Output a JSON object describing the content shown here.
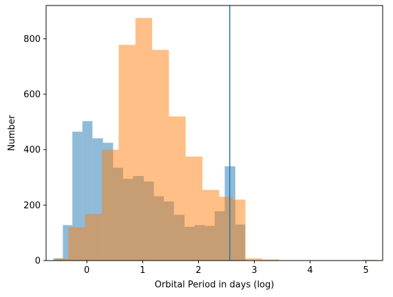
{
  "chart_data": {
    "type": "bar",
    "xlabel": "Orbital Period in days (log)",
    "ylabel": "Number",
    "xlim": [
      -0.73,
      5.3
    ],
    "ylim": [
      0,
      920
    ],
    "grid": false,
    "xticks": [
      0,
      1,
      2,
      3,
      4,
      5
    ],
    "yticks": [
      0,
      200,
      400,
      600,
      800
    ],
    "vline": {
      "x": 2.56,
      "color": "#1f77b4"
    },
    "series": [
      {
        "color": "#1f77b4",
        "opacity": 0.5,
        "bins": [
          {
            "x0": -0.6,
            "x1": -0.43,
            "value": 8
          },
          {
            "x0": -0.43,
            "x1": -0.26,
            "value": 128
          },
          {
            "x0": -0.26,
            "x1": -0.08,
            "value": 465
          },
          {
            "x0": -0.08,
            "x1": 0.1,
            "value": 503
          },
          {
            "x0": 0.1,
            "x1": 0.29,
            "value": 441
          },
          {
            "x0": 0.29,
            "x1": 0.47,
            "value": 425
          },
          {
            "x0": 0.47,
            "x1": 0.65,
            "value": 335
          },
          {
            "x0": 0.65,
            "x1": 0.83,
            "value": 295
          },
          {
            "x0": 0.83,
            "x1": 1.02,
            "value": 305
          },
          {
            "x0": 1.02,
            "x1": 1.2,
            "value": 285
          },
          {
            "x0": 1.2,
            "x1": 1.38,
            "value": 232
          },
          {
            "x0": 1.38,
            "x1": 1.56,
            "value": 213
          },
          {
            "x0": 1.56,
            "x1": 1.75,
            "value": 165
          },
          {
            "x0": 1.75,
            "x1": 1.93,
            "value": 122
          },
          {
            "x0": 1.93,
            "x1": 2.11,
            "value": 128
          },
          {
            "x0": 2.11,
            "x1": 2.29,
            "value": 125
          },
          {
            "x0": 2.29,
            "x1": 2.47,
            "value": 178
          },
          {
            "x0": 2.47,
            "x1": 2.66,
            "value": 340
          },
          {
            "x0": 2.66,
            "x1": 2.84,
            "value": 130
          }
        ]
      },
      {
        "color": "#ff7f0e",
        "opacity": 0.5,
        "bins": [
          {
            "x0": -0.55,
            "x1": -0.33,
            "value": 8
          },
          {
            "x0": -0.33,
            "x1": -0.03,
            "value": 120
          },
          {
            "x0": -0.03,
            "x1": 0.27,
            "value": 168
          },
          {
            "x0": 0.27,
            "x1": 0.57,
            "value": 400
          },
          {
            "x0": 0.57,
            "x1": 0.87,
            "value": 778
          },
          {
            "x0": 0.87,
            "x1": 1.17,
            "value": 875
          },
          {
            "x0": 1.17,
            "x1": 1.47,
            "value": 760
          },
          {
            "x0": 1.47,
            "x1": 1.77,
            "value": 520
          },
          {
            "x0": 1.77,
            "x1": 2.07,
            "value": 375
          },
          {
            "x0": 2.07,
            "x1": 2.37,
            "value": 255
          },
          {
            "x0": 2.37,
            "x1": 2.61,
            "value": 230
          },
          {
            "x0": 2.61,
            "x1": 2.84,
            "value": 220
          },
          {
            "x0": 2.84,
            "x1": 3.14,
            "value": 8
          },
          {
            "x0": 3.14,
            "x1": 3.44,
            "value": 4
          },
          {
            "x0": 4.94,
            "x1": 5.2,
            "value": 3
          }
        ]
      }
    ]
  }
}
